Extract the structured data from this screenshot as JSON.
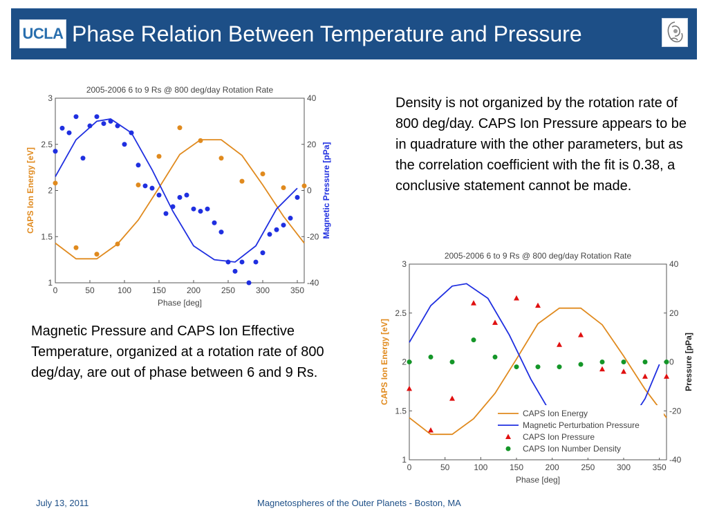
{
  "header": {
    "logo_text": "UCLA",
    "title": "Phase Relation Between Temperature and Pressure"
  },
  "text": {
    "top_right": "Density is not organized by the rotation rate of 800 deg/day.  CAPS Ion Pressure appears to be in quadrature with the other parameters, but as the correlation coefficient with the fit is 0.38, a conclusive statement cannot be made.",
    "left": "Magnetic Pressure and CAPS Ion Effective Temperature, organized at a rotation rate of 800 deg/day, are out of phase between 6 and 9 Rs."
  },
  "footer": {
    "date": "July 13, 2011",
    "event": "Magnetospheres of the Outer Planets - Boston, MA"
  },
  "colors": {
    "header_bg": "#1d4f87",
    "energy": "#e08a1e",
    "magnetic": "#1f2fe0",
    "pressure": "#e01010",
    "density": "#149628"
  },
  "chart_data": [
    {
      "type": "scatter",
      "title": "2005-2006 6 to 9 Rs @ 800 deg/day Rotation Rate",
      "xlabel": "Phase [deg]",
      "ylabel": "CAPS Ion Energy [eV]",
      "ylabel_right": "Magnetic Pressure [pPa]",
      "xlim": [
        0,
        360
      ],
      "ylim": [
        1,
        3
      ],
      "ylim_right": [
        -40,
        40
      ],
      "xticks": [
        "0",
        "50",
        "100",
        "150",
        "200",
        "250",
        "300",
        "350"
      ],
      "yticks": [
        "1",
        "1.5",
        "2",
        "2.5",
        "3"
      ],
      "yticks_right": [
        "-40",
        "-20",
        "0",
        "20",
        "40"
      ],
      "series": [
        {
          "axis": "left",
          "marker": "circle",
          "color": "#e08a1e",
          "x": [
            0,
            30,
            60,
            90,
            120,
            150,
            180,
            210,
            240,
            270,
            300,
            330,
            360
          ],
          "y": [
            2.08,
            1.38,
            1.31,
            1.42,
            2.06,
            2.37,
            2.68,
            2.54,
            2.35,
            2.1,
            2.18,
            2.03,
            2.05
          ]
        },
        {
          "axis": "left",
          "line": true,
          "color": "#e08a1e",
          "x": [
            0,
            30,
            60,
            90,
            120,
            150,
            180,
            210,
            240,
            270,
            300,
            330,
            360
          ],
          "y": [
            1.43,
            1.26,
            1.26,
            1.42,
            1.68,
            2.03,
            2.39,
            2.55,
            2.55,
            2.38,
            2.06,
            1.72,
            1.43
          ]
        },
        {
          "axis": "right",
          "marker": "circle",
          "color": "#1f2fe0",
          "x": [
            0,
            10,
            20,
            30,
            40,
            50,
            60,
            70,
            80,
            90,
            100,
            110,
            120,
            130,
            140,
            150,
            160,
            170,
            180,
            190,
            200,
            210,
            220,
            230,
            240,
            250,
            260,
            270,
            280,
            290,
            300,
            310,
            320,
            330,
            340,
            350
          ],
          "y": [
            17,
            27,
            25,
            32,
            14,
            28,
            32,
            29,
            30,
            28,
            20,
            25,
            11,
            2,
            1,
            -2,
            -10,
            -7,
            -3,
            -2,
            -8,
            -9,
            -8,
            -14,
            -18,
            -31,
            -35,
            -31,
            -40,
            -31,
            -27,
            -19,
            -17,
            -15,
            -12,
            -3
          ]
        },
        {
          "axis": "right",
          "line": true,
          "color": "#1f2fe0",
          "x": [
            0,
            30,
            60,
            80,
            110,
            140,
            170,
            200,
            230,
            260,
            290,
            320,
            350
          ],
          "y": [
            6,
            22,
            30,
            31,
            25,
            9,
            -9,
            -24,
            -30,
            -31,
            -24,
            -8,
            1
          ]
        }
      ]
    },
    {
      "type": "scatter",
      "title": "2005-2006 6 to 9 Rs @ 800 deg/day Rotation Rate",
      "xlabel": "Phase [deg]",
      "ylabel": "CAPS Ion Energy [eV]",
      "ylabel_right": "Pressure [pPa]",
      "xlim": [
        0,
        360
      ],
      "ylim": [
        1,
        3
      ],
      "ylim_right": [
        -40,
        40
      ],
      "xticks": [
        "0",
        "50",
        "100",
        "150",
        "200",
        "250",
        "300",
        "350"
      ],
      "yticks": [
        "1",
        "1.5",
        "2",
        "2.5",
        "3"
      ],
      "yticks_right": [
        "-40",
        "-20",
        "0",
        "20",
        "40"
      ],
      "legend_position": "bottom-right",
      "series": [
        {
          "name": "CAPS Ion Energy",
          "axis": "left",
          "line": true,
          "color": "#e08a1e",
          "x": [
            0,
            30,
            60,
            90,
            120,
            150,
            180,
            210,
            240,
            270,
            300,
            330,
            360
          ],
          "y": [
            1.43,
            1.26,
            1.26,
            1.42,
            1.68,
            2.03,
            2.39,
            2.55,
            2.55,
            2.38,
            2.06,
            1.72,
            1.43
          ]
        },
        {
          "name": "Magnetic Perturbation Pressure",
          "axis": "right",
          "line": true,
          "color": "#1f2fe0",
          "x": [
            0,
            30,
            60,
            80,
            110,
            140,
            170,
            200,
            310,
            330,
            350
          ],
          "y": [
            8,
            23,
            31,
            32,
            26,
            11,
            -7,
            -22,
            -24,
            -15,
            -1
          ]
        },
        {
          "name": "CAPS Ion Pressure",
          "axis": "right",
          "marker": "triangle",
          "color": "#e01010",
          "x": [
            0,
            30,
            60,
            90,
            120,
            150,
            180,
            210,
            240,
            270,
            300,
            330,
            360
          ],
          "y": [
            -11,
            -28,
            -15,
            24,
            16,
            26,
            23,
            7,
            11,
            -3,
            -4,
            -6,
            -6
          ]
        },
        {
          "name": "CAPS Ion Number Density",
          "axis": "right",
          "marker": "circle",
          "color": "#149628",
          "x": [
            0,
            30,
            60,
            90,
            120,
            150,
            180,
            210,
            240,
            270,
            300,
            330,
            360
          ],
          "y": [
            0,
            2,
            0,
            9,
            2,
            -2,
            -2,
            -2,
            -1,
            0,
            0,
            0,
            0
          ]
        }
      ]
    }
  ]
}
